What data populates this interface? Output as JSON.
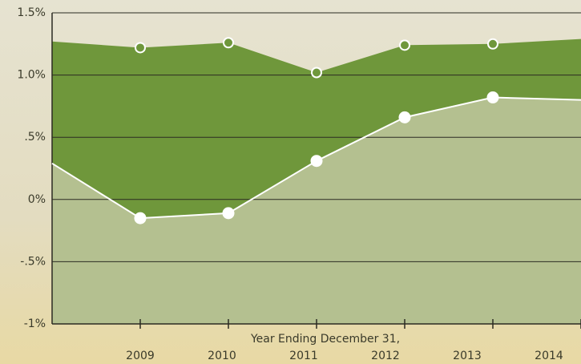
{
  "chart_data": {
    "type": "area",
    "x_label": "Year Ending December 31,",
    "x": [
      2008,
      2009,
      2010,
      2011,
      2012,
      2013,
      2014
    ],
    "xlim": [
      2008,
      2014
    ],
    "xticks": [
      2009,
      2010,
      2011,
      2012,
      2013,
      2014
    ],
    "ylim": [
      -1,
      1.5
    ],
    "yticks": [
      {
        "value": -1,
        "label": "-1%"
      },
      {
        "value": -0.5,
        "label": "-.5%"
      },
      {
        "value": 0,
        "label": "0%"
      },
      {
        "value": 0.5,
        "label": ".5%"
      },
      {
        "value": 1,
        "label": "1.0%"
      },
      {
        "value": 1.5,
        "label": "1.5%"
      }
    ],
    "grid": true,
    "series": [
      {
        "color": "#6f973b",
        "line": false,
        "marker": "hollow",
        "values": [
          1.27,
          1.22,
          1.26,
          1.02,
          1.24,
          1.25,
          1.29
        ]
      },
      {
        "color": "#b4c090",
        "line": true,
        "marker": "filled",
        "values": [
          0.29,
          -0.15,
          -0.11,
          0.31,
          0.66,
          0.82,
          0.8
        ]
      }
    ]
  }
}
